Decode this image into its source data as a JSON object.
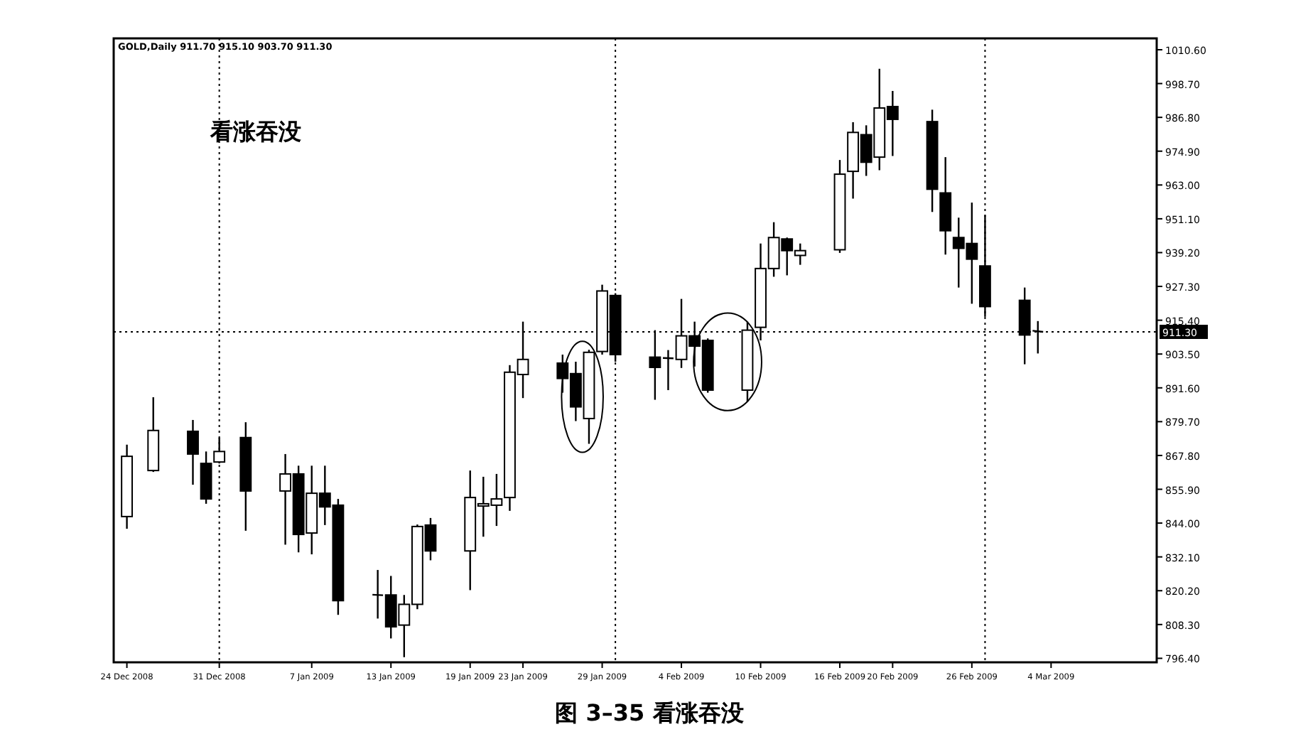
{
  "chart_data": {
    "type": "candlestick",
    "title": "图 3–35 看涨吞没",
    "annotations": [
      "GOLD,Daily 911.70 915.10 903.70 911.30",
      "看涨吞没"
    ],
    "x": [
      "2008-12-24",
      "2008-12-26",
      "2008-12-29",
      "2008-12-30",
      "2008-12-31",
      "2009-01-02",
      "2009-01-05",
      "2009-01-06",
      "2009-01-07",
      "2009-01-08",
      "2009-01-09",
      "2009-01-12",
      "2009-01-13",
      "2009-01-14",
      "2009-01-15",
      "2009-01-16",
      "2009-01-19",
      "2009-01-20",
      "2009-01-21",
      "2009-01-22",
      "2009-01-23",
      "2009-01-26",
      "2009-01-27",
      "2009-01-28",
      "2009-01-29",
      "2009-01-30",
      "2009-02-02",
      "2009-02-03",
      "2009-02-04",
      "2009-02-05",
      "2009-02-06",
      "2009-02-09",
      "2009-02-10",
      "2009-02-11",
      "2009-02-12",
      "2009-02-13",
      "2009-02-16",
      "2009-02-17",
      "2009-02-18",
      "2009-02-19",
      "2009-02-20",
      "2009-02-23",
      "2009-02-24",
      "2009-02-25",
      "2009-02-26",
      "2009-02-27",
      "2009-03-02",
      "2009-03-03"
    ],
    "ohlc": [
      [
        846.3,
        871.6,
        842.0,
        867.5
      ],
      [
        862.5,
        888.3,
        862.0,
        876.6
      ],
      [
        876.3,
        880.3,
        857.5,
        868.3
      ],
      [
        865.0,
        869.2,
        850.8,
        852.5
      ],
      [
        865.5,
        874.1,
        865.0,
        869.2
      ],
      [
        874.1,
        879.5,
        841.3,
        855.3
      ],
      [
        855.3,
        868.3,
        836.4,
        861.3
      ],
      [
        861.3,
        864.2,
        833.7,
        840.0
      ],
      [
        840.5,
        864.2,
        833.0,
        854.5
      ],
      [
        854.5,
        864.2,
        843.3,
        849.7
      ],
      [
        850.3,
        852.5,
        811.7,
        816.7
      ],
      [
        818.8,
        827.5,
        810.4,
        818.6
      ],
      [
        818.7,
        825.4,
        803.4,
        807.5
      ],
      [
        808.1,
        818.7,
        796.8,
        815.4
      ],
      [
        815.4,
        843.5,
        813.7,
        842.8
      ],
      [
        843.3,
        845.8,
        830.9,
        834.2
      ],
      [
        834.2,
        862.5,
        820.4,
        853.0
      ],
      [
        850.0,
        860.3,
        839.2,
        850.8
      ],
      [
        850.3,
        861.3,
        843.0,
        852.5
      ],
      [
        853.0,
        899.6,
        848.3,
        897.1
      ],
      [
        896.3,
        914.9,
        888.0,
        901.6
      ],
      [
        900.3,
        903.3,
        889.9,
        894.9
      ],
      [
        896.6,
        900.8,
        879.9,
        884.9
      ],
      [
        880.8,
        905.0,
        871.9,
        904.1
      ],
      [
        904.4,
        927.9,
        903.3,
        925.7
      ],
      [
        924.1,
        924.9,
        900.8,
        903.3
      ],
      [
        902.4,
        911.9,
        887.4,
        898.8
      ],
      [
        902.1,
        904.9,
        890.8,
        902.0
      ],
      [
        901.6,
        922.9,
        898.6,
        909.9
      ],
      [
        909.9,
        914.9,
        899.1,
        906.3
      ],
      [
        908.3,
        909.0,
        889.9,
        890.8
      ],
      [
        890.8,
        914.9,
        886.6,
        911.9
      ],
      [
        912.9,
        942.4,
        908.3,
        933.6
      ],
      [
        933.6,
        949.9,
        930.7,
        944.5
      ],
      [
        944.0,
        944.5,
        931.2,
        939.9
      ],
      [
        938.2,
        942.4,
        934.9,
        939.9
      ],
      [
        940.2,
        971.8,
        939.1,
        966.8
      ],
      [
        967.8,
        985.1,
        958.2,
        981.5
      ],
      [
        980.7,
        984.0,
        966.2,
        971.0
      ],
      [
        972.8,
        1003.9,
        968.2,
        990.1
      ],
      [
        990.6,
        996.1,
        973.2,
        986.1
      ],
      [
        985.3,
        989.5,
        953.5,
        961.5
      ],
      [
        960.2,
        972.8,
        938.5,
        946.9
      ],
      [
        944.5,
        951.5,
        926.9,
        940.7
      ],
      [
        942.4,
        956.8,
        921.2,
        936.9
      ],
      [
        934.5,
        952.4,
        916.6,
        920.2
      ],
      [
        922.4,
        926.9,
        899.9,
        910.2
      ],
      [
        911.7,
        915.1,
        903.7,
        911.3
      ]
    ],
    "xlim": [
      "2008-12-23",
      "2009-03-12"
    ],
    "xticks": [
      {
        "value": "2008-12-24",
        "label": "24 Dec 2008"
      },
      {
        "value": "2008-12-31",
        "label": "31 Dec 2008"
      },
      {
        "value": "2009-01-07",
        "label": "7 Jan 2009"
      },
      {
        "value": "2009-01-13",
        "label": "13 Jan 2009"
      },
      {
        "value": "2009-01-19",
        "label": "19 Jan 2009"
      },
      {
        "value": "2009-01-23",
        "label": "23 Jan 2009"
      },
      {
        "value": "2009-01-29",
        "label": "29 Jan 2009"
      },
      {
        "value": "2009-02-04",
        "label": "4 Feb 2009"
      },
      {
        "value": "2009-02-10",
        "label": "10 Feb 2009"
      },
      {
        "value": "2009-02-16",
        "label": "16 Feb 2009"
      },
      {
        "value": "2009-02-20",
        "label": "20 Feb 2009"
      },
      {
        "value": "2009-02-26",
        "label": "26 Feb 2009"
      },
      {
        "value": "2009-03-04",
        "label": "4 Mar 2009"
      }
    ],
    "ylim": [
      795,
      1014.6
    ],
    "yticks": [
      {
        "value": 1010.6,
        "label": "1010.60"
      },
      {
        "value": 998.7,
        "label": "998.70"
      },
      {
        "value": 986.8,
        "label": "986.80"
      },
      {
        "value": 974.9,
        "label": "974.90"
      },
      {
        "value": 963,
        "label": "963.00"
      },
      {
        "value": 951.1,
        "label": "951.10"
      },
      {
        "value": 939.2,
        "label": "939.20"
      },
      {
        "value": 927.3,
        "label": "927.30"
      },
      {
        "value": 915.4,
        "label": "915.40"
      },
      {
        "value": 903.5,
        "label": "903.50"
      },
      {
        "value": 891.6,
        "label": "891.60"
      },
      {
        "value": 879.7,
        "label": "879.70"
      },
      {
        "value": 867.8,
        "label": "867.80"
      },
      {
        "value": 855.9,
        "label": "855.90"
      },
      {
        "value": 844,
        "label": "844.00"
      },
      {
        "value": 832.1,
        "label": "832.10"
      },
      {
        "value": 820.2,
        "label": "820.20"
      },
      {
        "value": 808.3,
        "label": "808.30"
      },
      {
        "value": 796.4,
        "label": "796.40"
      }
    ],
    "ref_lines": [
      {
        "axis": "y",
        "value": 911.3,
        "label": "911.30",
        "line_style": "dotted"
      },
      {
        "axis": "x",
        "value": "2008-12-31",
        "line_style": "dotted"
      },
      {
        "axis": "x",
        "value": "2009-01-30",
        "line_style": "dotted"
      },
      {
        "axis": "x",
        "value": "2009-02-27",
        "line_style": "dotted"
      }
    ]
  }
}
